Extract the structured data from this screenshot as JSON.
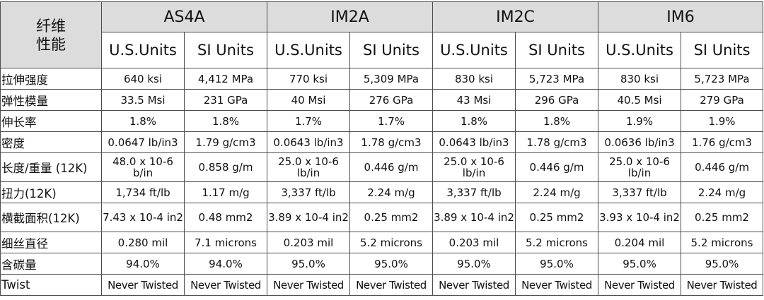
{
  "header": {
    "corner_label_line1": "纤维",
    "corner_label_line2": "性能",
    "grades": [
      "AS4A",
      "IM2A",
      "IM2C",
      "IM6"
    ],
    "units": [
      "U.S.Units",
      "SI Units"
    ]
  },
  "rows": [
    {
      "label": "拉伸强度",
      "values": [
        "640 ksi",
        "4,412 MPa",
        "770 ksi",
        "5,309 MPa",
        "830 ksi",
        "5,723 MPa",
        "830 ksi",
        "5,723 MPa"
      ]
    },
    {
      "label": "弹性模量",
      "values": [
        "33.5 Msi",
        "231 GPa",
        "40 Msi",
        "276 GPa",
        "43 Msi",
        "296 GPa",
        "40.5 Msi",
        "279 GPa"
      ]
    },
    {
      "label": "伸长率",
      "values": [
        "1.8%",
        "1.8%",
        "1.7%",
        "1.7%",
        "1.8%",
        "1.8%",
        "1.9%",
        "1.9%"
      ]
    },
    {
      "label": "密度",
      "values": [
        "0.0647 lb/in3",
        "1.79 g/cm3",
        "0.0643 lb/in3",
        "1.78 g/cm3",
        "0.0643 lb/in3",
        "1.78 g/cm3",
        "0.0636 lb/in3",
        "1.76 g/cm3"
      ]
    },
    {
      "label": "长度/重量 (12K)",
      "values": [
        "48.0 x 10-6 b/in",
        "0.858 g/m",
        "25.0 x 10-6 lb/in",
        "0.446 g/m",
        "25.0 x 10-6 lb/in",
        "0.446 g/m",
        "25.0 x 10-6 lb/in",
        "0.446 g/m"
      ]
    },
    {
      "label": "扭力(12K)",
      "values": [
        "1,734 ft/lb",
        "1.17 m/g",
        "3,337 ft/lb",
        "2.24 m/g",
        "3,337 ft/lb",
        "2.24 m/g",
        "3,337 ft/lb",
        "2.24 m/g"
      ]
    },
    {
      "label": "横截面积(12K)",
      "values": [
        "7.43 x 10-4 in2",
        "0.48 mm2",
        "3.89 x 10-4 in2",
        "0.25 mm2",
        "3.89 x 10-4 in2",
        "0.25 mm2",
        "3.93 x 10-4 in2",
        "0.25 mm2"
      ]
    },
    {
      "label": "细丝直径",
      "values": [
        "0.280 mil",
        "7.1 microns",
        "0.203 mil",
        "5.2 microns",
        "0.203 mil",
        "5.2 microns",
        "0.204 mil",
        "5.2 microns"
      ]
    },
    {
      "label": "含碳量",
      "values": [
        "94.0%",
        "94.0%",
        "95.0%",
        "95.0%",
        "95.0%",
        "95.0%",
        "95.0%",
        "95.0%"
      ]
    },
    {
      "label": "Twist",
      "values": [
        "Never Twisted",
        "Never Twisted",
        "Never Twisted",
        "Never Twisted",
        "Never Twisted",
        "Never Twisted",
        "Never Twisted",
        "Never Twisted"
      ]
    }
  ]
}
